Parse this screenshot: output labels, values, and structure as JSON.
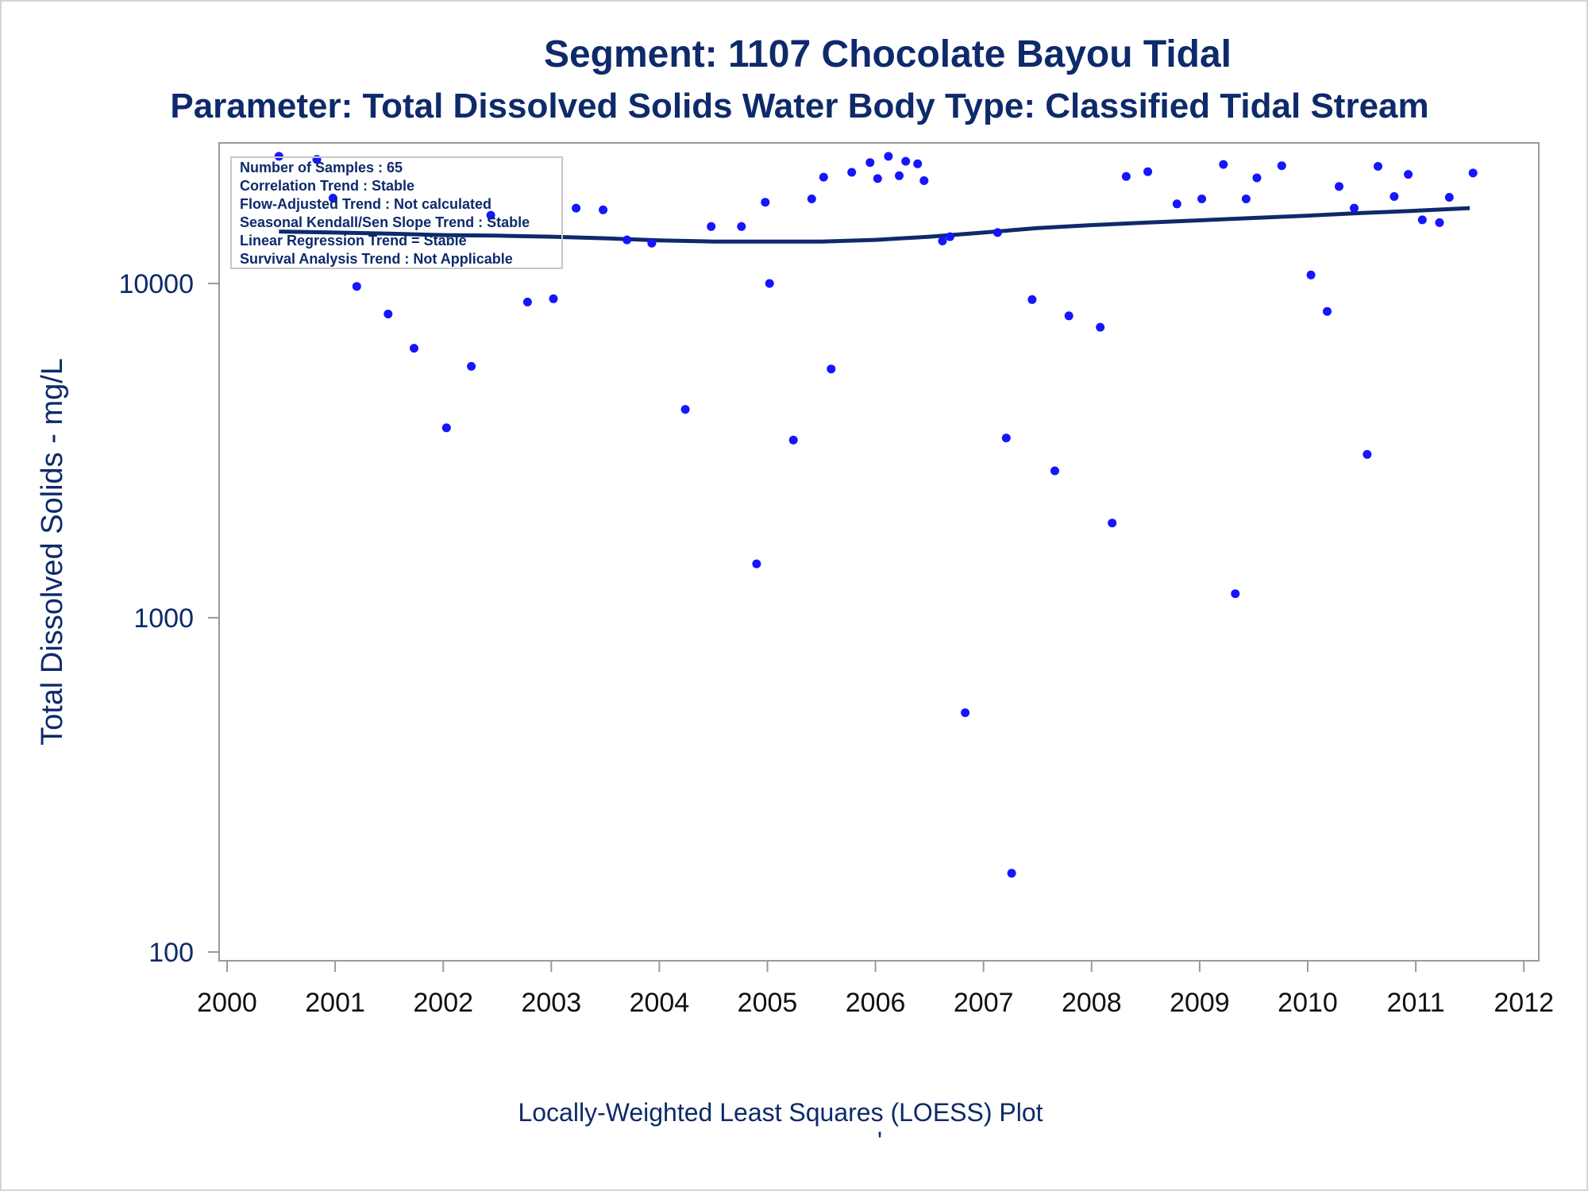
{
  "title": "Segment: 1107  Chocolate Bayou Tidal",
  "subtitle": "Parameter: Total Dissolved Solids   Water Body Type: Classified Tidal Stream",
  "footer": "Locally-Weighted Least Squares (LOESS) Plot",
  "footer_mark": "'",
  "info_box": [
    "Number of Samples : 65",
    "Correlation Trend : Stable",
    "Flow-Adjusted Trend : Not calculated",
    "Seasonal Kendall/Sen Slope Trend : Stable",
    "Linear Regression Trend = Stable",
    "Survival Analysis Trend : Not Applicable"
  ],
  "colors": {
    "points": "#1515ff",
    "loess": "#0e2a6b",
    "text": "#0e2a6b",
    "axis": "#9a9a9a"
  },
  "chart_data": {
    "type": "scatter",
    "xlabel": "",
    "ylabel": "Total Dissolved Solids - mg/L",
    "y_scale": "log",
    "xlim": [
      2000,
      2012
    ],
    "ylim": [
      100,
      30000
    ],
    "x_ticks": [
      2000,
      2001,
      2002,
      2003,
      2004,
      2005,
      2006,
      2007,
      2008,
      2009,
      2010,
      2011,
      2012
    ],
    "y_ticks": [
      100,
      1000,
      10000
    ],
    "grid": false,
    "series": [
      {
        "type": "scatter",
        "points": [
          [
            2000.48,
            24000
          ],
          [
            2000.83,
            23500
          ],
          [
            2000.98,
            18000
          ],
          [
            2001.2,
            9800
          ],
          [
            2001.49,
            8100
          ],
          [
            2001.73,
            6400
          ],
          [
            2002.03,
            3700
          ],
          [
            2002.26,
            5650
          ],
          [
            2002.44,
            16000
          ],
          [
            2002.78,
            8800
          ],
          [
            2003.02,
            9000
          ],
          [
            2003.23,
            16800
          ],
          [
            2003.48,
            16600
          ],
          [
            2003.7,
            13500
          ],
          [
            2003.93,
            13200
          ],
          [
            2004.24,
            4200
          ],
          [
            2004.48,
            14800
          ],
          [
            2004.76,
            14800
          ],
          [
            2004.9,
            1450
          ],
          [
            2004.98,
            17500
          ],
          [
            2005.02,
            10000
          ],
          [
            2005.24,
            3400
          ],
          [
            2005.41,
            17900
          ],
          [
            2005.52,
            20800
          ],
          [
            2005.59,
            5550
          ],
          [
            2005.78,
            21500
          ],
          [
            2005.95,
            23000
          ],
          [
            2006.02,
            20600
          ],
          [
            2006.12,
            24000
          ],
          [
            2006.22,
            21000
          ],
          [
            2006.28,
            23200
          ],
          [
            2006.39,
            22800
          ],
          [
            2006.45,
            20300
          ],
          [
            2006.62,
            13400
          ],
          [
            2006.69,
            13800
          ],
          [
            2006.83,
            520
          ],
          [
            2007.13,
            14200
          ],
          [
            2007.21,
            3450
          ],
          [
            2007.26,
            172
          ],
          [
            2007.45,
            8950
          ],
          [
            2007.66,
            2750
          ],
          [
            2007.79,
            8000
          ],
          [
            2008.08,
            7400
          ],
          [
            2008.19,
            1920
          ],
          [
            2008.32,
            20900
          ],
          [
            2008.52,
            21600
          ],
          [
            2008.79,
            17300
          ],
          [
            2009.02,
            17900
          ],
          [
            2009.22,
            22700
          ],
          [
            2009.33,
            1180
          ],
          [
            2009.43,
            17900
          ],
          [
            2009.53,
            20700
          ],
          [
            2009.76,
            22500
          ],
          [
            2010.03,
            10600
          ],
          [
            2010.18,
            8250
          ],
          [
            2010.29,
            19500
          ],
          [
            2010.43,
            16800
          ],
          [
            2010.55,
            3080
          ],
          [
            2010.65,
            22400
          ],
          [
            2010.8,
            18200
          ],
          [
            2010.93,
            21200
          ],
          [
            2011.06,
            15500
          ],
          [
            2011.22,
            15200
          ],
          [
            2011.31,
            18100
          ],
          [
            2011.53,
            21400
          ]
        ]
      },
      {
        "type": "line",
        "points": [
          [
            2000.48,
            14300
          ],
          [
            2001.0,
            14200
          ],
          [
            2001.5,
            14100
          ],
          [
            2002.0,
            13950
          ],
          [
            2002.5,
            13900
          ],
          [
            2003.0,
            13800
          ],
          [
            2003.5,
            13650
          ],
          [
            2004.0,
            13450
          ],
          [
            2004.5,
            13350
          ],
          [
            2005.0,
            13350
          ],
          [
            2005.5,
            13350
          ],
          [
            2006.0,
            13500
          ],
          [
            2006.5,
            13800
          ],
          [
            2007.0,
            14200
          ],
          [
            2007.5,
            14650
          ],
          [
            2008.0,
            14950
          ],
          [
            2008.5,
            15200
          ],
          [
            2009.0,
            15450
          ],
          [
            2009.5,
            15700
          ],
          [
            2010.0,
            15950
          ],
          [
            2010.5,
            16250
          ],
          [
            2011.0,
            16500
          ],
          [
            2011.5,
            16800
          ]
        ]
      }
    ]
  }
}
